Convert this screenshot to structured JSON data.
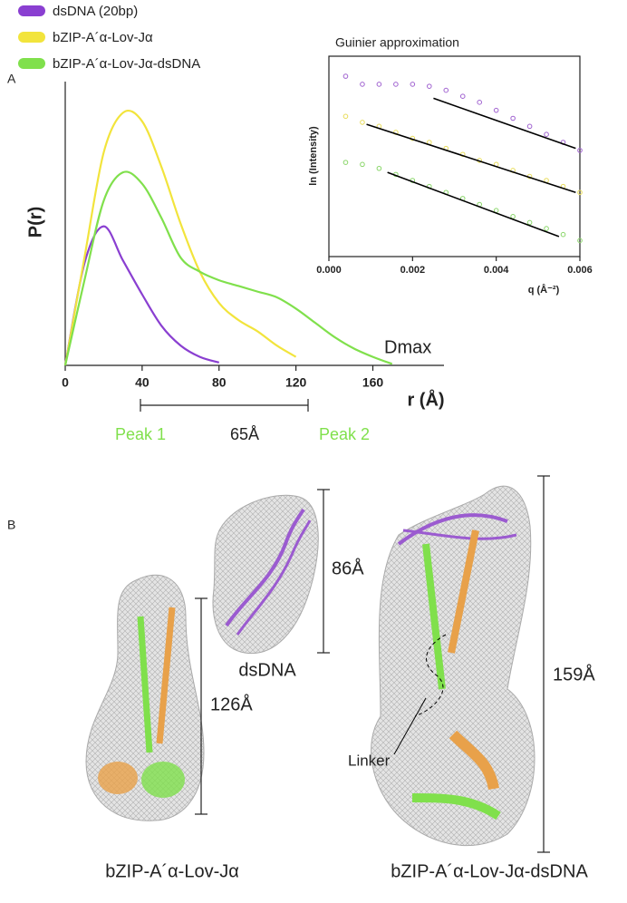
{
  "chart_data": [
    {
      "type": "line",
      "panel_label": "A",
      "ylabel": "P(r)",
      "xlabel": "r (Å)",
      "annotations": {
        "dmax": "Dmax",
        "peak1": "Peak 1",
        "distance": "65Å",
        "peak2": "Peak 2"
      },
      "x": [
        0,
        10,
        20,
        30,
        40,
        50,
        60,
        70,
        80,
        90,
        100,
        110,
        120,
        130,
        140,
        150,
        160,
        170
      ],
      "xlim": [
        0,
        197
      ],
      "xticks": [
        0,
        40,
        80,
        120,
        160
      ],
      "ylim": [
        0,
        1
      ],
      "series": [
        {
          "name": "dsDNA (20bp)",
          "color": "#8a3fd1",
          "values": [
            0,
            0.36,
            0.49,
            0.37,
            0.25,
            0.14,
            0.07,
            0.03,
            0.01,
            null,
            null,
            null,
            null,
            null,
            null,
            null,
            null,
            null
          ]
        },
        {
          "name": "bZIP-A´α-Lov-Jα",
          "color": "#f2e43c",
          "values": [
            0,
            0.38,
            0.75,
            0.89,
            0.86,
            0.7,
            0.5,
            0.33,
            0.22,
            0.16,
            0.12,
            0.07,
            0.03,
            null,
            null,
            null,
            null,
            null
          ]
        },
        {
          "name": "bZIP-A´α-Lov-Jα-dsDNA",
          "color": "#80e04c",
          "values": [
            0,
            0.3,
            0.58,
            0.68,
            0.64,
            0.52,
            0.38,
            0.33,
            0.3,
            0.28,
            0.26,
            0.24,
            0.2,
            0.15,
            0.1,
            0.06,
            0.03,
            0.005
          ]
        }
      ]
    },
    {
      "type": "scatter",
      "title": "Guinier approximation",
      "ylabel": "ln (Intensity)",
      "xlabel": "q (Å⁻²)",
      "x": [
        0.0004,
        0.0008,
        0.0012,
        0.0016,
        0.002,
        0.0024,
        0.0028,
        0.0032,
        0.0036,
        0.004,
        0.0044,
        0.0048,
        0.0052,
        0.0056,
        0.006
      ],
      "xlim": [
        0,
        0.006
      ],
      "ylim": [
        0,
        1
      ],
      "xticks": [
        {
          "value": 0,
          "label": "0.000"
        },
        {
          "value": 0.002,
          "label": "0.002"
        },
        {
          "value": 0.004,
          "label": "0.004"
        },
        {
          "value": 0.006,
          "label": "0.006"
        }
      ],
      "series": [
        {
          "color": "#a062d0",
          "values": [
            0.9,
            0.86,
            0.86,
            0.86,
            0.86,
            0.85,
            0.83,
            0.8,
            0.77,
            0.73,
            0.69,
            0.65,
            0.61,
            0.57,
            0.53
          ]
        },
        {
          "color": "#e8dc5a",
          "values": [
            0.7,
            0.67,
            0.65,
            0.62,
            0.59,
            0.57,
            0.54,
            0.51,
            0.48,
            0.46,
            0.43,
            0.4,
            0.38,
            0.35,
            0.32
          ]
        },
        {
          "color": "#8ad66a",
          "values": [
            0.47,
            0.46,
            0.44,
            0.41,
            0.38,
            0.35,
            0.32,
            0.29,
            0.26,
            0.23,
            0.2,
            0.17,
            0.14,
            0.11,
            0.08
          ]
        }
      ],
      "fit_lines": [
        {
          "color": "#000000",
          "x": [
            0.0025,
            0.0059
          ],
          "values": [
            0.79,
            0.54
          ]
        },
        {
          "color": "#000000",
          "x": [
            0.0009,
            0.0059
          ],
          "values": [
            0.66,
            0.32
          ]
        },
        {
          "color": "#000000",
          "x": [
            0.0014,
            0.0055
          ],
          "values": [
            0.42,
            0.1
          ]
        }
      ]
    }
  ],
  "panel_b": {
    "label": "B",
    "linker_label": "Linker",
    "structures": [
      {
        "name": "dsDNA",
        "dimension": "86Å"
      },
      {
        "name": "bZIP-A´α-Lov-Jα",
        "dimension": "126Å"
      },
      {
        "name": "bZIP-A´α-Lov-Jα-dsDNA",
        "dimension": "159Å"
      }
    ]
  }
}
